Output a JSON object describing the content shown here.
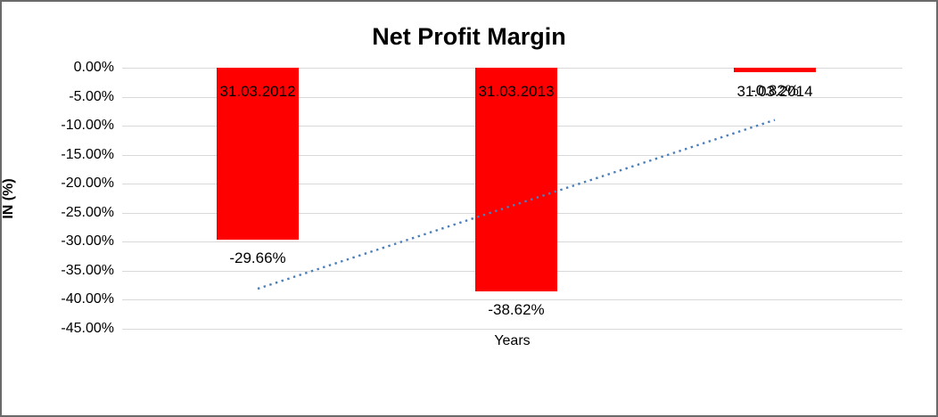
{
  "chart_data": {
    "type": "bar",
    "title": "Net Profit Margin",
    "xlabel": "Years",
    "ylabel": "IN (%)",
    "categories": [
      "31.03.2012",
      "31.03.2013",
      "31.03.2014"
    ],
    "values": [
      -29.66,
      -38.62,
      -0.82
    ],
    "value_labels": [
      "-29.66%",
      "-38.62%",
      "-0.82%"
    ],
    "bar_color": "#ff0000",
    "ylim": [
      -45,
      0
    ],
    "y_ticks": [
      "0.00%",
      "-5.00%",
      "-10.00%",
      "-15.00%",
      "-20.00%",
      "-25.00%",
      "-30.00%",
      "-35.00%",
      "-40.00%",
      "-45.00%"
    ],
    "y_tick_values": [
      0,
      -5,
      -10,
      -15,
      -20,
      -25,
      -30,
      -35,
      -40,
      -45
    ],
    "grid": true,
    "legend_position": "none",
    "grid_color": "#d9d9d9",
    "text_color": "#000000",
    "trendline": {
      "type": "linear",
      "style": "dotted",
      "color": "#4a7ebb",
      "start_value": -38.1,
      "end_value": -9.0
    }
  }
}
